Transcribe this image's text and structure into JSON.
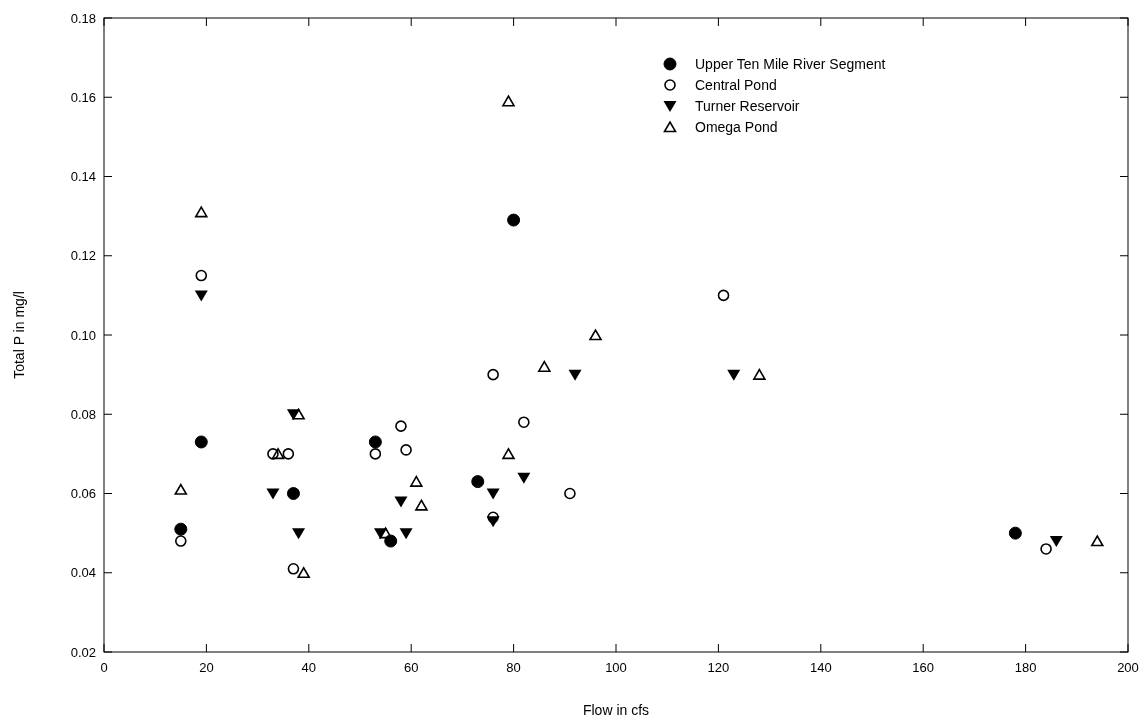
{
  "chart_data": {
    "type": "scatter",
    "xlabel": "Flow in cfs",
    "ylabel": "Total P in mg/l",
    "xlim": [
      0,
      200
    ],
    "xticks": [
      0,
      20,
      40,
      60,
      80,
      100,
      120,
      140,
      160,
      180,
      200
    ],
    "ylim": [
      0.02,
      0.18
    ],
    "yticks": [
      {
        "value": 0.02,
        "label": "0.02"
      },
      {
        "value": 0.04,
        "label": "0.04"
      },
      {
        "value": 0.06,
        "label": "0.06"
      },
      {
        "value": 0.08,
        "label": "0.08"
      },
      {
        "value": 0.1,
        "label": "0.10"
      },
      {
        "value": 0.12,
        "label": "0.12"
      },
      {
        "value": 0.14,
        "label": "0.14"
      },
      {
        "value": 0.16,
        "label": "0.16"
      },
      {
        "value": 0.18,
        "label": "0.18"
      }
    ],
    "grid": false,
    "legend": "top right",
    "series": [
      {
        "name": "Upper Ten Mile River Segment",
        "color": "#000000",
        "marker": "circle",
        "x": [
          15,
          19,
          37,
          53,
          56,
          73,
          80,
          178
        ],
        "values": [
          0.051,
          0.073,
          0.06,
          0.073,
          0.048,
          0.063,
          0.129,
          0.05
        ]
      },
      {
        "name": "Central Pond",
        "color": "#000000",
        "marker": "circle-open",
        "x": [
          15,
          19,
          33,
          36,
          37,
          53,
          58,
          59,
          76,
          76,
          82,
          91,
          121,
          184
        ],
        "values": [
          0.048,
          0.115,
          0.07,
          0.07,
          0.041,
          0.07,
          0.077,
          0.071,
          0.09,
          0.054,
          0.078,
          0.06,
          0.11,
          0.046
        ]
      },
      {
        "name": "Turner Reservoir",
        "color": "#000000",
        "marker": "triangle-down",
        "x": [
          19,
          33,
          37,
          38,
          54,
          58,
          59,
          76,
          76,
          82,
          92,
          123,
          186
        ],
        "values": [
          0.11,
          0.06,
          0.08,
          0.05,
          0.05,
          0.058,
          0.05,
          0.06,
          0.053,
          0.064,
          0.09,
          0.09,
          0.048
        ]
      },
      {
        "name": "Omega Pond",
        "color": "#000000",
        "marker": "triangle-open",
        "x": [
          15,
          19,
          34,
          38,
          39,
          55,
          61,
          62,
          79,
          79,
          86,
          96,
          128,
          194
        ],
        "values": [
          0.061,
          0.131,
          0.07,
          0.08,
          0.04,
          0.05,
          0.063,
          0.057,
          0.159,
          0.07,
          0.092,
          0.1,
          0.09,
          0.048
        ]
      }
    ]
  }
}
